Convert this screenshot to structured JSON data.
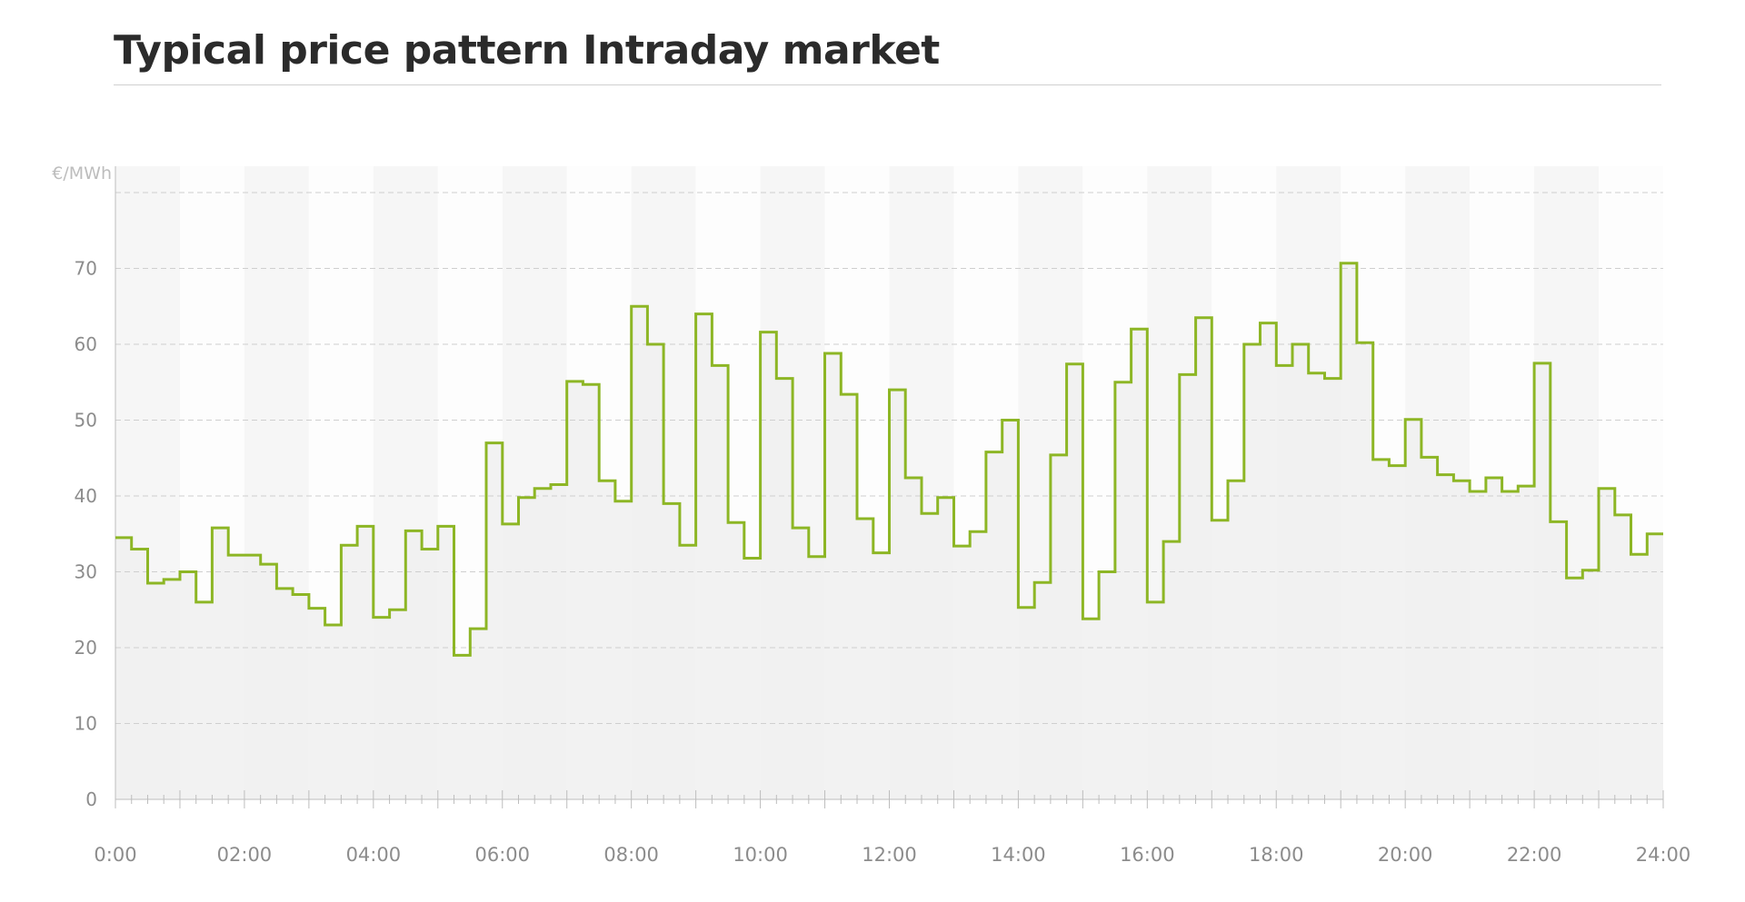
{
  "title": "Typical price pattern Intraday market",
  "chart_data": {
    "type": "line",
    "step": true,
    "ylabel": "€/MWh",
    "ylim": [
      0,
      80
    ],
    "yticks": [
      0,
      10,
      20,
      30,
      40,
      50,
      60,
      70
    ],
    "xlim": [
      0,
      24
    ],
    "xticks": [
      {
        "v": 0,
        "label": "0:00"
      },
      {
        "v": 2,
        "label": "02:00"
      },
      {
        "v": 4,
        "label": "04:00"
      },
      {
        "v": 6,
        "label": "06:00"
      },
      {
        "v": 8,
        "label": "08:00"
      },
      {
        "v": 10,
        "label": "10:00"
      },
      {
        "v": 12,
        "label": "12:00"
      },
      {
        "v": 14,
        "label": "14:00"
      },
      {
        "v": 16,
        "label": "16:00"
      },
      {
        "v": 18,
        "label": "18:00"
      },
      {
        "v": 20,
        "label": "20:00"
      },
      {
        "v": 22,
        "label": "22:00"
      },
      {
        "v": 24,
        "label": "24:00"
      }
    ],
    "grid": true,
    "line_color": "#8db625",
    "fill_color": "#f0f0f0",
    "series": [
      {
        "interval_hours": 0.25,
        "values": [
          34.5,
          33,
          28.5,
          29,
          30,
          26,
          35.8,
          32.2,
          32.2,
          31,
          27.8,
          27,
          25.2,
          23,
          33.5,
          36,
          24,
          25,
          35.4,
          33,
          36,
          19,
          22.5,
          47,
          36.3,
          39.8,
          41,
          41.5,
          55.1,
          54.7,
          42,
          39.3,
          65,
          60,
          39,
          33.5,
          64,
          57.2,
          36.5,
          31.8,
          61.6,
          55.5,
          35.8,
          32,
          58.8,
          53.4,
          37,
          32.5,
          54,
          42.4,
          37.7,
          39.8,
          33.4,
          35.3,
          45.8,
          50,
          25.3,
          28.6,
          45.4,
          57.4,
          23.8,
          30,
          55,
          62,
          26,
          34,
          56,
          63.5,
          36.8,
          42,
          60,
          62.8,
          57.2,
          60,
          56.2,
          55.5,
          70.7,
          60.2,
          44.8,
          44,
          50.1,
          45.1,
          42.8,
          42,
          40.6,
          42.4,
          40.6,
          41.3,
          57.5,
          36.6,
          29.2,
          30.2,
          41,
          37.5,
          32.3,
          35
        ]
      }
    ]
  }
}
